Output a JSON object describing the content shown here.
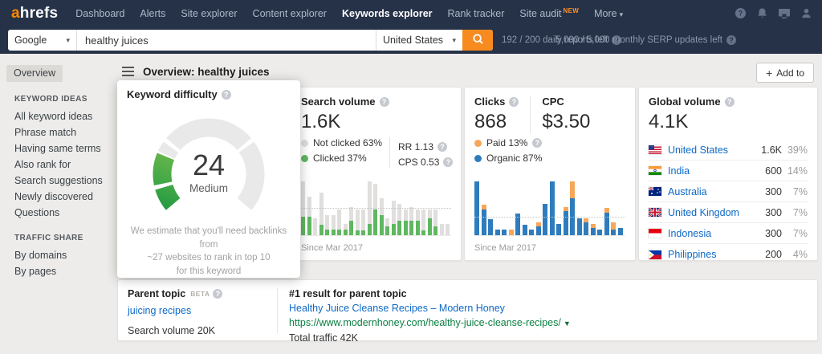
{
  "colors": {
    "accent_orange": "#f78b1f",
    "link_blue": "#0d69c7",
    "url_green": "#0b8043",
    "clicked_green": "#5fb760",
    "not_clicked_gray": "#e0dfdd",
    "organic_blue": "#2e7cbd",
    "paid_orange": "#f6a75a",
    "gauge_green_from": "#229a43",
    "gauge_green_to": "#86c44e",
    "gauge_track": "#e9e9e9"
  },
  "nav": {
    "logo_prefix": "a",
    "logo_rest": "hrefs",
    "items": [
      {
        "label": "Dashboard"
      },
      {
        "label": "Alerts"
      },
      {
        "label": "Site explorer"
      },
      {
        "label": "Content explorer"
      },
      {
        "label": "Keywords explorer",
        "active": true
      },
      {
        "label": "Rank tracker"
      },
      {
        "label": "Site audit",
        "badge": "NEW"
      },
      {
        "label": "More",
        "caret": true
      }
    ],
    "icons": [
      "help-icon",
      "bell-icon",
      "monitor-icon",
      "user-icon"
    ]
  },
  "searchbar": {
    "engine": "Google",
    "query": "healthy juices",
    "country": "United States",
    "reports_left": "192 / 200 daily reports left",
    "serp_updates_left": "5,000 / 5,000 monthly SERP updates left"
  },
  "sidebar": {
    "overview": "Overview",
    "sections": [
      {
        "title": "KEYWORD IDEAS",
        "items": [
          "All keyword ideas",
          "Phrase match",
          "Having same terms",
          "Also rank for",
          "Search suggestions",
          "Newly discovered",
          "Questions"
        ]
      },
      {
        "title": "TRAFFIC SHARE",
        "items": [
          "By domains",
          "By pages"
        ]
      }
    ]
  },
  "header": {
    "title": "Overview: healthy juices",
    "add_to_label": "Add to"
  },
  "difficulty_card": {
    "title": "Keyword difficulty",
    "value": "24",
    "level": "Medium",
    "note_lines": [
      "We estimate that you'll need backlinks from",
      "~27 websites to rank in top 10",
      "for this keyword"
    ],
    "gauge": {
      "percent": 24,
      "segment_boundaries": [
        10,
        30,
        70
      ]
    }
  },
  "search_volume_card": {
    "title": "Search volume",
    "value": "1.6K",
    "legend": [
      {
        "label": "Not clicked 63%",
        "color": "#e0dfdd"
      },
      {
        "label": "Clicked 37%",
        "color": "#5fb760"
      }
    ],
    "stats": [
      {
        "label": "RR 1.13",
        "help": true
      },
      {
        "label": "CPS 0.53",
        "help": true
      }
    ],
    "since": "Since Mar 2017",
    "chart_data": {
      "type": "bar",
      "stacked": true,
      "values_unit": "percent_of_tallest_bar",
      "dotted_line_pct": 46,
      "series": [
        {
          "name": "Clicked",
          "color": "#5fb760",
          "values": [
            32,
            32,
            0,
            18,
            10,
            10,
            10,
            10,
            25,
            8,
            8,
            20,
            45,
            35,
            15,
            20,
            25,
            25,
            25,
            25,
            8,
            30,
            15,
            0,
            0
          ]
        },
        {
          "name": "Not clicked",
          "color": "#e0dfdd",
          "values": [
            63,
            36,
            30,
            57,
            25,
            25,
            35,
            10,
            25,
            37,
            37,
            75,
            45,
            30,
            15,
            40,
            30,
            20,
            25,
            20,
            37,
            15,
            30,
            20,
            20
          ]
        }
      ]
    }
  },
  "clicks_card": {
    "clicks_title": "Clicks",
    "clicks_value": "868",
    "cpc_title": "CPC",
    "cpc_value": "$3.50",
    "legend": [
      {
        "label": "Paid 13%",
        "color": "#f6a75a",
        "help": true
      },
      {
        "label": "Organic 87%",
        "color": "#2e7cbd"
      }
    ],
    "since": "Since Mar 2017",
    "chart_data": {
      "type": "bar",
      "stacked": true,
      "values_unit": "percent_of_tallest_bar",
      "dotted_line_pct": 31,
      "series": [
        {
          "name": "Organic",
          "color": "#2e7cbd",
          "values": [
            95,
            45,
            28,
            10,
            10,
            0,
            38,
            18,
            10,
            15,
            55,
            95,
            20,
            42,
            65,
            30,
            22,
            12,
            10,
            40,
            10,
            12
          ]
        },
        {
          "name": "Paid",
          "color": "#f6a75a",
          "values": [
            0,
            8,
            0,
            0,
            0,
            10,
            0,
            0,
            0,
            8,
            0,
            0,
            0,
            8,
            30,
            0,
            8,
            8,
            0,
            8,
            12,
            0
          ]
        }
      ]
    }
  },
  "global_card": {
    "title": "Global volume",
    "value": "4.1K",
    "rows": [
      {
        "flag": "us",
        "country": "United States",
        "volume": "1.6K",
        "percent": "39%"
      },
      {
        "flag": "in",
        "country": "India",
        "volume": "600",
        "percent": "14%"
      },
      {
        "flag": "au",
        "country": "Australia",
        "volume": "300",
        "percent": "7%"
      },
      {
        "flag": "gb",
        "country": "United Kingdom",
        "volume": "300",
        "percent": "7%"
      },
      {
        "flag": "id",
        "country": "Indonesia",
        "volume": "300",
        "percent": "7%"
      },
      {
        "flag": "ph",
        "country": "Philippines",
        "volume": "200",
        "percent": "4%"
      }
    ]
  },
  "bottom": {
    "parent_topic": {
      "title": "Parent topic",
      "beta": "BETA",
      "link": "juicing recipes",
      "search_volume": "Search volume 20K"
    },
    "top_result": {
      "title": "#1 result for parent topic",
      "link": "Healthy Juice Cleanse Recipes – Modern Honey",
      "url": "https://www.modernhoney.com/healthy-juice-cleanse-recipes/",
      "traffic": "Total traffic 42K"
    }
  }
}
